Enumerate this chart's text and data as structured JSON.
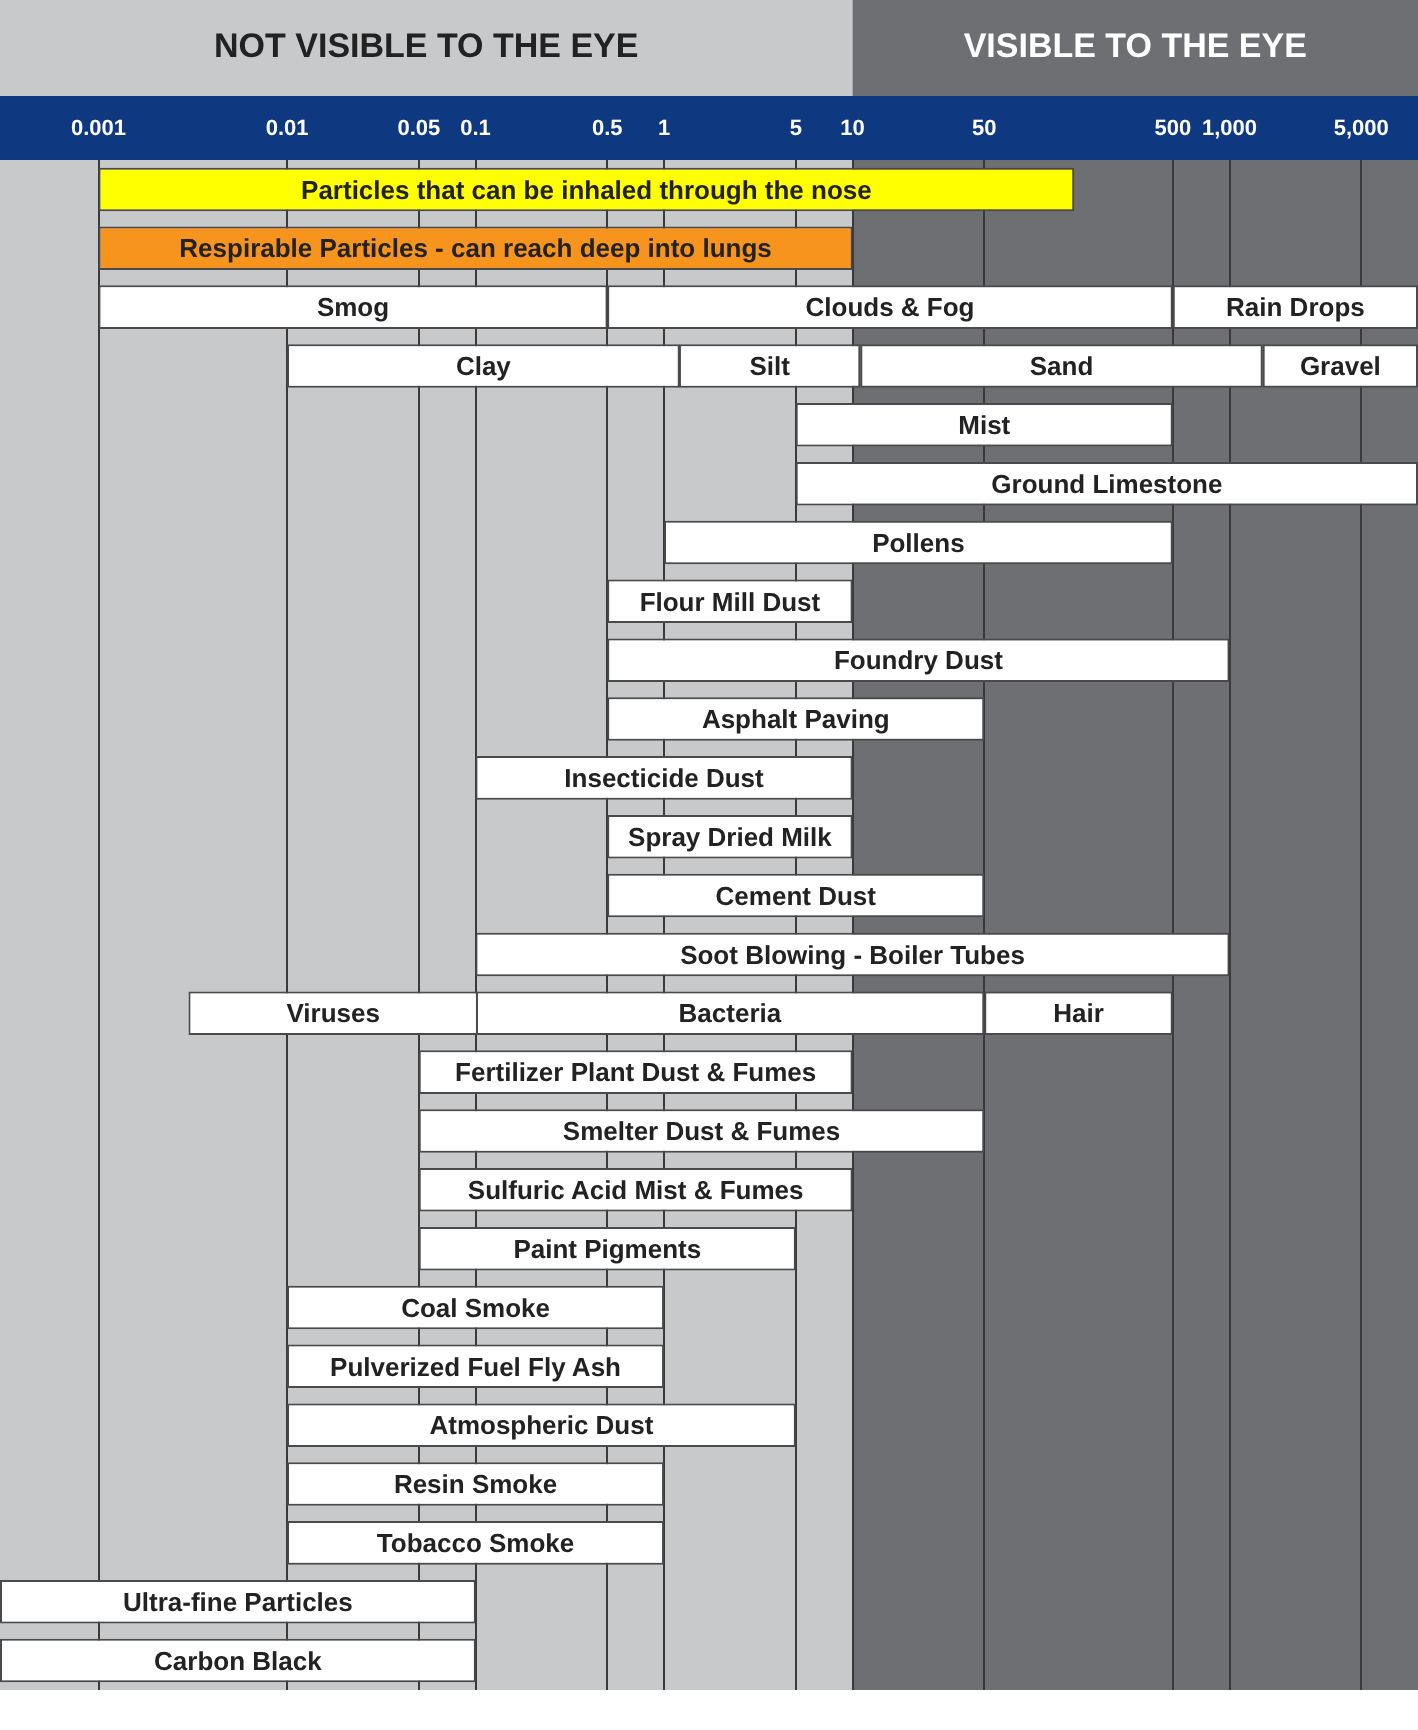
{
  "chart_data": {
    "type": "bar",
    "orientation": "horizontal",
    "categories": [
      null,
      null,
      null,
      null,
      null,
      null,
      null,
      null,
      null,
      null,
      null,
      null,
      null,
      null,
      null,
      null,
      null,
      null,
      null,
      null,
      null,
      null,
      null,
      null,
      null,
      null
    ],
    "xlim": [
      0.0003,
      10000
    ],
    "xticks": [
      0.001,
      0.01,
      0.05,
      0.1,
      0.5,
      1,
      5,
      10,
      50,
      500,
      {
        "value": 1000,
        "label": "1,000"
      },
      {
        "value": 5000,
        "label": "5,000"
      }
    ],
    "tick_labels": "x",
    "log": "x",
    "grid": "x",
    "legend": false,
    "bands": [
      {
        "axis": "x",
        "from": 0.0003,
        "to": 10,
        "label": "NOT VISIBLE TO THE EYE",
        "color": "#c8c9cb"
      },
      {
        "axis": "x",
        "from": 10,
        "to": 10000,
        "label": "VISIBLE TO THE EYE",
        "color": "#6e6f72"
      }
    ],
    "series": [
      {
        "colors": [
          "#ffff00",
          "#f7941d",
          "#ffffff",
          "#ffffff",
          "#ffffff",
          "#ffffff",
          "#ffffff",
          "#ffffff",
          "#ffffff",
          "#ffffff",
          "#ffffff",
          "#ffffff",
          "#ffffff",
          "#ffffff",
          "#ffffff",
          "#ffffff",
          "#ffffff",
          "#ffffff",
          "#ffffff",
          "#ffffff",
          "#ffffff",
          "#ffffff",
          "#ffffff",
          "#ffffff",
          "#ffffff",
          "#ffffff"
        ],
        "base": [
          0.001,
          0.001,
          0.001,
          0.01,
          5,
          5,
          1,
          0.5,
          0.5,
          0.5,
          0.1,
          0.5,
          0.5,
          0.1,
          0.003,
          0.05,
          0.05,
          0.05,
          0.05,
          0.01,
          0.01,
          0.01,
          0.01,
          0.01,
          0.0003,
          0.0003
        ],
        "values": [
          150,
          10,
          0.5,
          1.2,
          495,
          9995,
          499,
          9.5,
          999.5,
          49.5,
          9.9,
          9.5,
          49.5,
          999.9,
          0.1,
          9.95,
          49.95,
          9.95,
          4.95,
          0.99,
          0.99,
          4.99,
          0.99,
          0.99,
          0.1,
          0.1
        ],
        "value_labels": [
          "Particles that can be inhaled through the nose",
          "Respirable Particles - can reach deep into lungs",
          "Smog",
          "Clay",
          "Mist",
          "Ground Limestone",
          "Pollens",
          "Flour Mill Dust",
          "Foundry Dust",
          "Asphalt Paving",
          "Insecticide Dust",
          "Spray Dried Milk",
          "Cement Dust",
          "Soot Blowing - Boiler Tubes",
          "Viruses",
          "Fertilizer Plant Dust & Fumes",
          "Smelter Dust & Fumes",
          "Sulfuric Acid Mist & Fumes",
          "Paint Pigments",
          "Coal Smoke",
          "Pulverized Fuel Fly Ash",
          "Atmospheric Dust",
          "Resin Smoke",
          "Tobacco Smoke",
          "Ultra-fine Particles",
          "Carbon Black"
        ]
      },
      {
        "color": "#ffffff",
        "base": [
          null,
          null,
          0.5,
          1.2,
          null,
          null,
          null,
          null,
          null,
          null,
          null,
          null,
          null,
          null,
          0.1,
          null,
          null,
          null,
          null,
          null,
          null,
          null,
          null,
          null,
          null,
          null
        ],
        "values": [
          null,
          null,
          499.5,
          9.8,
          null,
          null,
          null,
          null,
          null,
          null,
          null,
          null,
          null,
          null,
          49.9,
          null,
          null,
          null,
          null,
          null,
          null,
          null,
          null,
          null,
          null,
          null
        ],
        "value_labels": [
          null,
          null,
          "Clouds & Fog",
          "Silt",
          null,
          null,
          null,
          null,
          null,
          null,
          null,
          null,
          null,
          null,
          "Bacteria",
          null,
          null,
          null,
          null,
          null,
          null,
          null,
          null,
          null,
          null,
          null
        ]
      },
      {
        "color": "#ffffff",
        "base": [
          null,
          null,
          500,
          11,
          null,
          null,
          null,
          null,
          null,
          null,
          null,
          null,
          null,
          null,
          50,
          null,
          null,
          null,
          null,
          null,
          null,
          null,
          null,
          null,
          null,
          null
        ],
        "values": [
          null,
          null,
          9500,
          1489,
          null,
          null,
          null,
          null,
          null,
          null,
          null,
          null,
          null,
          null,
          450,
          null,
          null,
          null,
          null,
          null,
          null,
          null,
          null,
          null,
          null,
          null
        ],
        "value_labels": [
          null,
          null,
          "Rain Drops",
          "Sand",
          null,
          null,
          null,
          null,
          null,
          null,
          null,
          null,
          null,
          null,
          "Hair",
          null,
          null,
          null,
          null,
          null,
          null,
          null,
          null,
          null,
          null,
          null
        ]
      },
      {
        "color": "#ffffff",
        "base": [
          null,
          null,
          null,
          1500,
          null,
          null,
          null,
          null,
          null,
          null,
          null,
          null,
          null,
          null,
          null,
          null,
          null,
          null,
          null,
          null,
          null,
          null,
          null,
          null,
          null,
          null
        ],
        "values": [
          null,
          null,
          null,
          8500,
          null,
          null,
          null,
          null,
          null,
          null,
          null,
          null,
          null,
          null,
          null,
          null,
          null,
          null,
          null,
          null,
          null,
          null,
          null,
          null,
          null,
          null
        ],
        "value_labels": [
          null,
          null,
          null,
          "Gravel",
          null,
          null,
          null,
          null,
          null,
          null,
          null,
          null,
          null,
          null,
          null,
          null,
          null,
          null,
          null,
          null,
          null,
          null,
          null,
          null,
          null,
          null
        ]
      }
    ]
  }
}
